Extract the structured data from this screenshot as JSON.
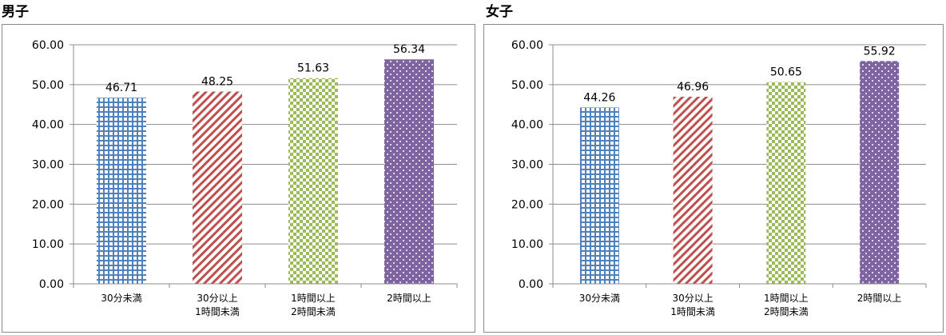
{
  "chart_data": [
    {
      "type": "bar",
      "title": "男子",
      "categories": [
        [
          "30分未満"
        ],
        [
          "30分以上",
          "1時間未満"
        ],
        [
          "1時間以上",
          "2時間未満"
        ],
        [
          "2時間以上"
        ]
      ],
      "values": [
        46.71,
        48.25,
        51.63,
        56.34
      ],
      "value_labels": [
        "46.71",
        "48.25",
        "51.63",
        "56.34"
      ],
      "ylim": [
        0,
        60
      ],
      "yticks": [
        0,
        10,
        20,
        30,
        40,
        50,
        60
      ],
      "ytick_labels": [
        "0.00",
        "10.00",
        "20.00",
        "30.00",
        "40.00",
        "50.00",
        "60.00"
      ],
      "grid": true,
      "legend": "none"
    },
    {
      "type": "bar",
      "title": "女子",
      "categories": [
        [
          "30分未満"
        ],
        [
          "30分以上",
          "1時間未満"
        ],
        [
          "1時間以上",
          "2時間未満"
        ],
        [
          "2時間以上"
        ]
      ],
      "values": [
        44.26,
        46.96,
        50.65,
        55.92
      ],
      "value_labels": [
        "44.26",
        "46.96",
        "50.65",
        "55.92"
      ],
      "ylim": [
        0,
        60
      ],
      "yticks": [
        0,
        10,
        20,
        30,
        40,
        50,
        60
      ],
      "ytick_labels": [
        "0.00",
        "10.00",
        "20.00",
        "30.00",
        "40.00",
        "50.00",
        "60.00"
      ],
      "grid": true,
      "legend": "none"
    }
  ],
  "bar_styles": [
    {
      "pattern": "grid-check",
      "color": "#4f81bd"
    },
    {
      "pattern": "diagonal-stripes",
      "color": "#c0504d"
    },
    {
      "pattern": "checkerboard",
      "color": "#9bbb59"
    },
    {
      "pattern": "dotted",
      "color": "#8064a2"
    }
  ]
}
